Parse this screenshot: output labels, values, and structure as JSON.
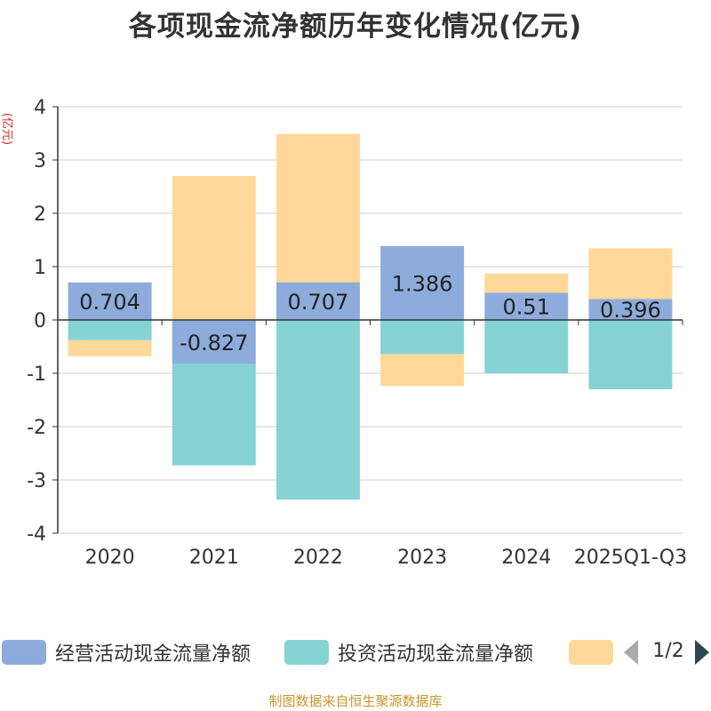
{
  "chart_data": {
    "type": "bar",
    "stacked": true,
    "title": "各项现金流净额历年变化情况(亿元)",
    "ylabel": "(亿元)",
    "xlabel": "",
    "ylim": [
      -4,
      4
    ],
    "yticks": [
      4,
      3,
      2,
      1,
      0,
      -1,
      -2,
      -3,
      -4
    ],
    "categories": [
      "2020",
      "2021",
      "2022",
      "2023",
      "2024",
      "2025Q1-Q3"
    ],
    "series": [
      {
        "name": "经营活动现金流量净额",
        "color": "#8eacdb",
        "values": [
          0.704,
          -0.827,
          0.707,
          1.386,
          0.51,
          0.396
        ],
        "data_labels": [
          "0.704",
          "-0.827",
          "0.707",
          "1.386",
          "0.51",
          "0.396"
        ]
      },
      {
        "name": "投资活动现金流量净额",
        "color": "#86d3d6",
        "values": [
          -0.38,
          -1.9,
          -3.37,
          -0.64,
          -1.0,
          -1.3
        ]
      },
      {
        "name": "",
        "color": "#fed898",
        "values": [
          -0.3,
          2.7,
          2.78,
          -0.6,
          0.36,
          0.95
        ]
      }
    ],
    "legend_position": "bottom"
  },
  "legend": {
    "items": [
      "经营活动现金流量净额",
      "投资活动现金流量净额",
      ""
    ],
    "page": "1/2"
  },
  "footer": "制图数据来自恒生聚源数据库"
}
